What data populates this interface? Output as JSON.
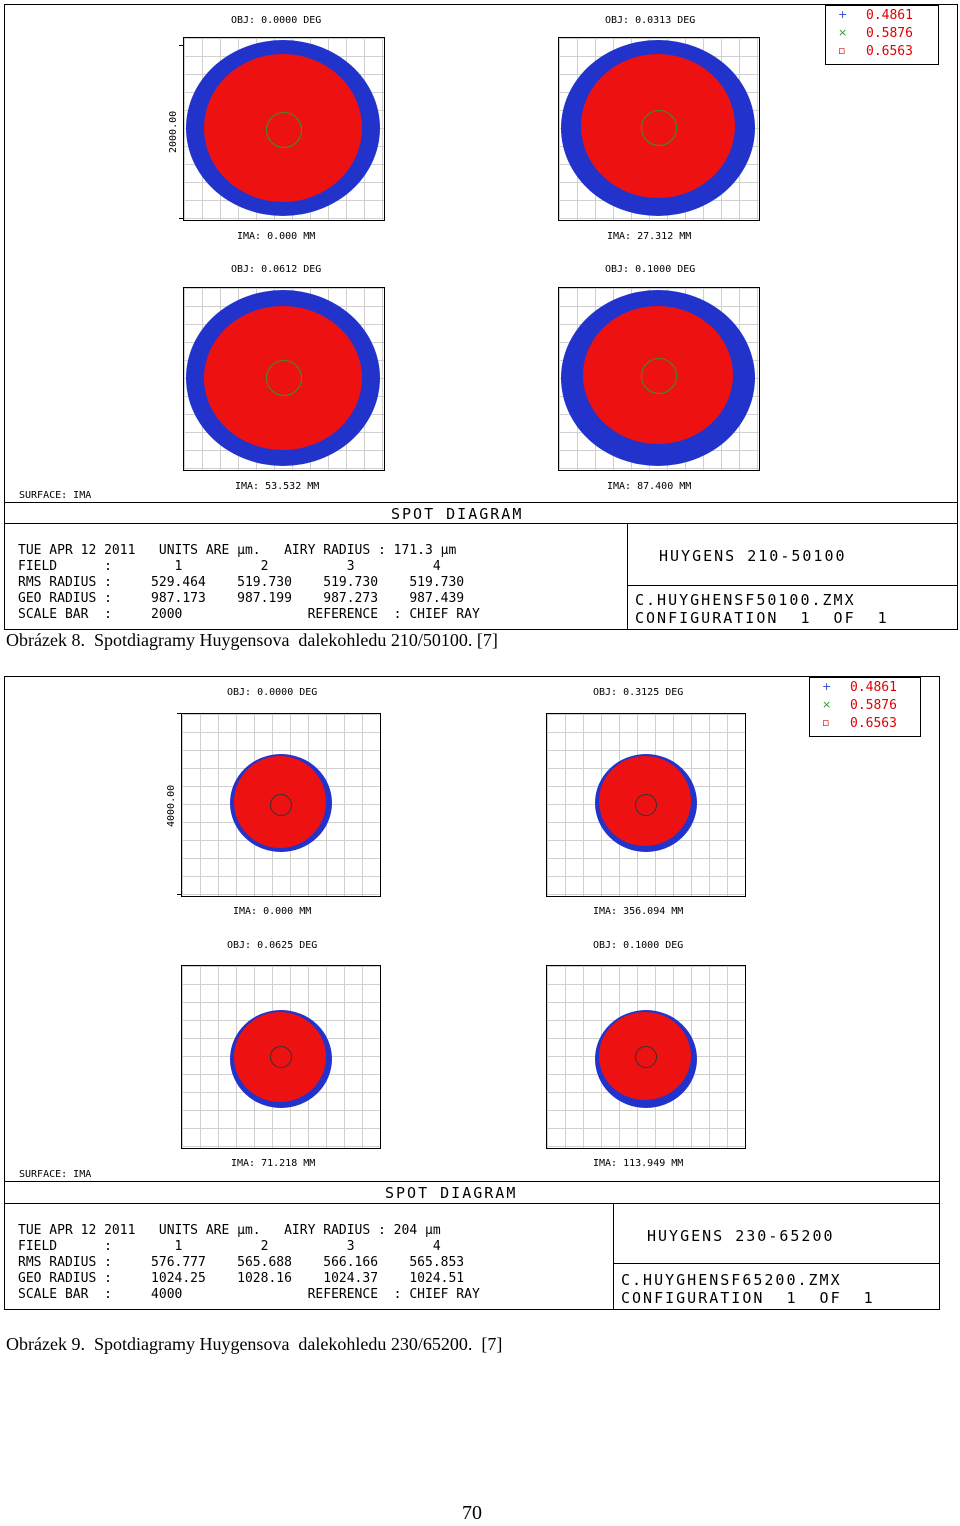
{
  "figure1": {
    "panels": [
      {
        "obj": "OBJ: 0.0000 DEG",
        "ima": "IMA: 0.000 MM"
      },
      {
        "obj": "OBJ: 0.0313 DEG",
        "ima": "IMA: 27.312 MM"
      },
      {
        "obj": "OBJ: 0.0612 DEG",
        "ima": "IMA: 53.532 MM"
      },
      {
        "obj": "OBJ: 0.1000 DEG",
        "ima": "IMA: 87.400 MM"
      }
    ],
    "legend": [
      {
        "symbol": "+",
        "value": "0.4861",
        "color": "#1f3fd6"
      },
      {
        "symbol": "×",
        "value": "0.5876",
        "color": "#2a9a2a"
      },
      {
        "symbol": "▫",
        "value": "0.6563",
        "color": "#e00000"
      }
    ],
    "scale_bar_label": "2000.00",
    "surface": "SURFACE: IMA",
    "banner": "SPOT DIAGRAM",
    "info_lines": [
      "TUE APR 12 2011   UNITS ARE µm.   AIRY RADIUS : 171.3 µm",
      "FIELD      :        1          2          3          4",
      "RMS RADIUS :     529.464    519.730    519.730    519.730",
      "GEO RADIUS :     987.173    987.199    987.273    987.439",
      "SCALE BAR  :     2000                REFERENCE  : CHIEF RAY"
    ],
    "right_title": "HUYGENS 210-50100",
    "right_file": "C.HUYGHENSF50100.ZMX",
    "right_config": "CONFIGURATION  1  OF  1",
    "caption": "Obrázek 8.  Spotdiagramy Huygensova  dalekohledu 210/50100. [7]"
  },
  "figure2": {
    "panels": [
      {
        "obj": "OBJ: 0.0000 DEG",
        "ima": "IMA: 0.000 MM"
      },
      {
        "obj": "OBJ: 0.3125 DEG",
        "ima": "IMA: 356.094 MM"
      },
      {
        "obj": "OBJ: 0.0625 DEG",
        "ima": "IMA: 71.218 MM"
      },
      {
        "obj": "OBJ: 0.1000 DEG",
        "ima": "IMA: 113.949 MM"
      }
    ],
    "legend": [
      {
        "symbol": "+",
        "value": "0.4861",
        "color": "#1f3fd6"
      },
      {
        "symbol": "×",
        "value": "0.5876",
        "color": "#2a9a2a"
      },
      {
        "symbol": "▫",
        "value": "0.6563",
        "color": "#e00000"
      }
    ],
    "scale_bar_label": "4000.00",
    "surface": "SURFACE: IMA",
    "banner": "SPOT DIAGRAM",
    "info_lines": [
      "TUE APR 12 2011   UNITS ARE µm.   AIRY RADIUS : 204 µm",
      "FIELD      :        1          2          3          4",
      "RMS RADIUS :     576.777    565.688    566.166    565.853",
      "GEO RADIUS :     1024.25    1028.16    1024.37    1024.51",
      "SCALE BAR  :     4000                REFERENCE  : CHIEF RAY"
    ],
    "right_title": "HUYGENS 230-65200",
    "right_file": "C.HUYGHENSF65200.ZMX",
    "right_config": "CONFIGURATION  1  OF  1",
    "caption": "Obrázek 9.  Spotdiagramy Huygensova  dalekohledu 230/65200.  [7]"
  },
  "page_number": "70",
  "colors": {
    "spot_red": "#ee1111",
    "spot_blue": "#2233cc",
    "spot_green": "#2a9a2a"
  }
}
